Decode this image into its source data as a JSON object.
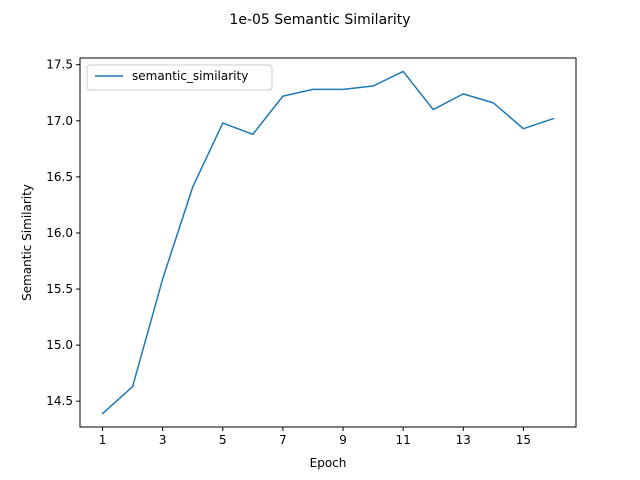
{
  "chart_data": {
    "type": "line",
    "title": "1e-05 Semantic Similarity",
    "xlabel": "Epoch",
    "ylabel": "Semantic Similarity",
    "x": [
      1,
      2,
      3,
      4,
      5,
      6,
      7,
      8,
      9,
      10,
      11,
      12,
      13,
      14,
      15,
      16
    ],
    "xticks": [
      1,
      3,
      5,
      7,
      9,
      11,
      13,
      15
    ],
    "yticks": [
      14.5,
      15.0,
      15.5,
      16.0,
      16.5,
      17.0,
      17.5
    ],
    "ytick_labels": [
      "14.5",
      "15.0",
      "15.5",
      "16.0",
      "16.5",
      "17.0",
      "17.5"
    ],
    "xlim": [
      0.25,
      16.75
    ],
    "ylim": [
      14.27,
      17.56
    ],
    "grid": false,
    "legend_position": "upper left",
    "series": [
      {
        "name": "semantic_similarity",
        "color": "#1f77b4",
        "values": [
          14.39,
          14.63,
          15.59,
          16.41,
          16.98,
          16.88,
          17.22,
          17.28,
          17.28,
          17.31,
          17.44,
          17.1,
          17.24,
          17.16,
          16.93,
          17.02
        ]
      }
    ]
  }
}
